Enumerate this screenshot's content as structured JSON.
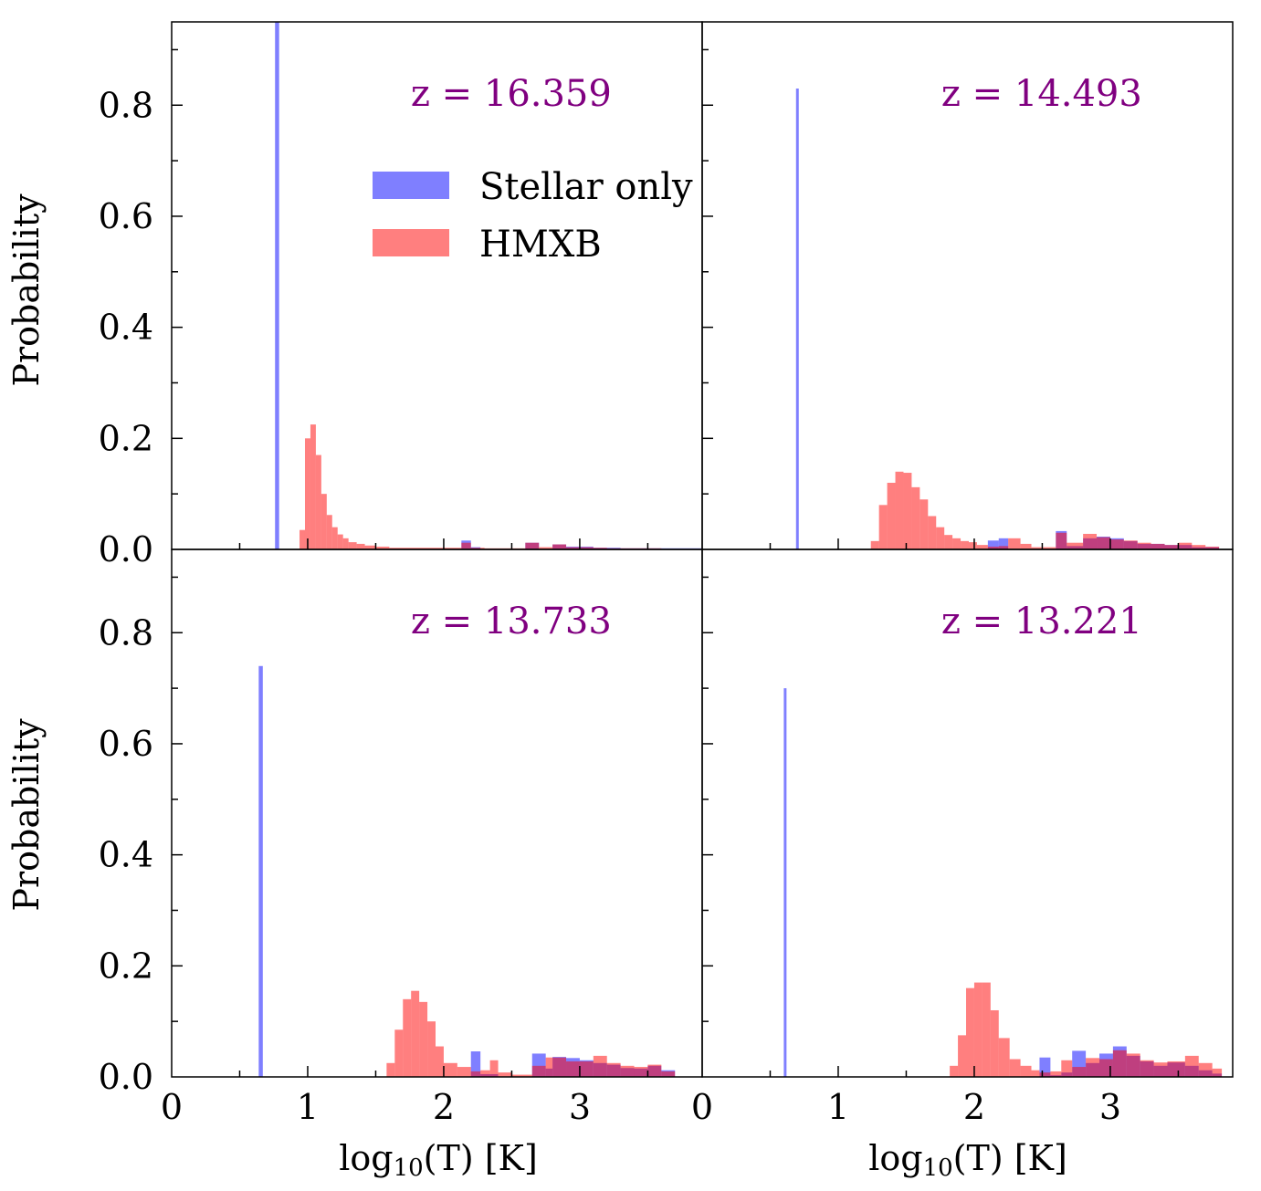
{
  "chart_data": {
    "type": "bar",
    "layout": "2x2 grid, shared axes",
    "ylabel": "Probability",
    "xlabel_main": "log",
    "xlabel_sub": "10",
    "xlabel_tail": "(T) [K]",
    "xlim": [
      0,
      3.9
    ],
    "ylim": [
      0,
      0.95
    ],
    "xticks": [
      "0",
      "1",
      "2",
      "3"
    ],
    "yticks": [
      "0.0",
      "0.2",
      "0.4",
      "0.6",
      "0.8"
    ],
    "legend": {
      "placement": "upper-center of top-left panel",
      "entries": [
        {
          "label": "Stellar only",
          "color": "#7f7fff"
        },
        {
          "label": "HMXB",
          "color": "#ff7f7f"
        }
      ]
    },
    "colors": {
      "stellar": "#7f7fff",
      "hmxb": "#ff7f7f",
      "overlap": "#990066",
      "annotation": "#800080"
    },
    "panels": [
      {
        "title": "z = 16.359",
        "stellar": [
          [
            0.76,
            0.79,
            0.95
          ],
          [
            2.13,
            2.2,
            0.016
          ],
          [
            2.2,
            2.27,
            0.004
          ],
          [
            2.6,
            2.7,
            0.012
          ],
          [
            2.8,
            2.9,
            0.009
          ],
          [
            2.9,
            3.1,
            0.005
          ],
          [
            3.1,
            3.3,
            0.003
          ],
          [
            3.3,
            3.9,
            0.002
          ]
        ],
        "hmxb": [
          [
            0.94,
            0.98,
            0.035
          ],
          [
            0.98,
            1.02,
            0.2
          ],
          [
            1.02,
            1.06,
            0.225
          ],
          [
            1.06,
            1.1,
            0.17
          ],
          [
            1.1,
            1.14,
            0.1
          ],
          [
            1.14,
            1.18,
            0.062
          ],
          [
            1.18,
            1.22,
            0.04
          ],
          [
            1.22,
            1.26,
            0.027
          ],
          [
            1.26,
            1.3,
            0.02
          ],
          [
            1.3,
            1.36,
            0.013
          ],
          [
            1.36,
            1.42,
            0.01
          ],
          [
            1.42,
            1.5,
            0.007
          ],
          [
            1.5,
            1.6,
            0.005
          ],
          [
            1.6,
            2.13,
            0.003
          ],
          [
            2.13,
            2.2,
            0.012
          ],
          [
            2.2,
            2.3,
            0.003
          ],
          [
            2.3,
            2.6,
            0.002
          ],
          [
            2.6,
            2.7,
            0.012
          ],
          [
            2.7,
            2.8,
            0.004
          ],
          [
            2.8,
            2.9,
            0.009
          ],
          [
            2.9,
            3.1,
            0.004
          ],
          [
            3.1,
            3.2,
            0.003
          ],
          [
            3.2,
            3.6,
            0.002
          ]
        ]
      },
      {
        "title": "z = 14.493",
        "stellar": [
          [
            0.69,
            0.71,
            0.83
          ],
          [
            2.1,
            2.18,
            0.016
          ],
          [
            2.18,
            2.25,
            0.02
          ],
          [
            2.6,
            2.68,
            0.033
          ],
          [
            2.68,
            2.8,
            0.006
          ],
          [
            2.8,
            2.9,
            0.02
          ],
          [
            2.9,
            3.0,
            0.023
          ],
          [
            3.0,
            3.1,
            0.02
          ],
          [
            3.1,
            3.2,
            0.015
          ],
          [
            3.2,
            3.4,
            0.01
          ],
          [
            3.4,
            3.6,
            0.008
          ],
          [
            3.6,
            3.8,
            0.004
          ]
        ],
        "hmxb": [
          [
            1.24,
            1.3,
            0.015
          ],
          [
            1.3,
            1.36,
            0.08
          ],
          [
            1.36,
            1.42,
            0.12
          ],
          [
            1.42,
            1.48,
            0.14
          ],
          [
            1.48,
            1.54,
            0.138
          ],
          [
            1.54,
            1.6,
            0.112
          ],
          [
            1.6,
            1.66,
            0.09
          ],
          [
            1.66,
            1.72,
            0.06
          ],
          [
            1.72,
            1.78,
            0.04
          ],
          [
            1.78,
            1.84,
            0.026
          ],
          [
            1.84,
            1.9,
            0.02
          ],
          [
            1.9,
            1.96,
            0.015
          ],
          [
            1.96,
            2.02,
            0.013
          ],
          [
            2.02,
            2.1,
            0.008
          ],
          [
            2.1,
            2.18,
            0.005
          ],
          [
            2.18,
            2.25,
            0.006
          ],
          [
            2.25,
            2.34,
            0.02
          ],
          [
            2.34,
            2.42,
            0.01
          ],
          [
            2.42,
            2.6,
            0.004
          ],
          [
            2.6,
            2.68,
            0.03
          ],
          [
            2.68,
            2.8,
            0.012
          ],
          [
            2.8,
            2.9,
            0.028
          ],
          [
            2.9,
            3.0,
            0.022
          ],
          [
            3.0,
            3.1,
            0.018
          ],
          [
            3.1,
            3.2,
            0.016
          ],
          [
            3.2,
            3.3,
            0.012
          ],
          [
            3.3,
            3.4,
            0.01
          ],
          [
            3.4,
            3.5,
            0.008
          ],
          [
            3.5,
            3.6,
            0.012
          ],
          [
            3.6,
            3.7,
            0.008
          ],
          [
            3.7,
            3.8,
            0.005
          ]
        ]
      },
      {
        "title": "z = 13.733",
        "stellar": [
          [
            0.64,
            0.67,
            0.74
          ],
          [
            2.2,
            2.27,
            0.046
          ],
          [
            2.27,
            2.4,
            0.005
          ],
          [
            2.65,
            2.75,
            0.042
          ],
          [
            2.75,
            2.8,
            0.015
          ],
          [
            2.8,
            2.9,
            0.036
          ],
          [
            2.9,
            3.0,
            0.034
          ],
          [
            3.0,
            3.1,
            0.03
          ],
          [
            3.1,
            3.2,
            0.025
          ],
          [
            3.2,
            3.3,
            0.022
          ],
          [
            3.3,
            3.4,
            0.016
          ],
          [
            3.4,
            3.5,
            0.015
          ],
          [
            3.5,
            3.6,
            0.02
          ],
          [
            3.6,
            3.7,
            0.012
          ]
        ],
        "hmxb": [
          [
            1.58,
            1.64,
            0.025
          ],
          [
            1.64,
            1.7,
            0.085
          ],
          [
            1.7,
            1.76,
            0.14
          ],
          [
            1.76,
            1.82,
            0.155
          ],
          [
            1.82,
            1.88,
            0.135
          ],
          [
            1.88,
            1.94,
            0.1
          ],
          [
            1.94,
            2.0,
            0.055
          ],
          [
            2.0,
            2.1,
            0.025
          ],
          [
            2.1,
            2.2,
            0.018
          ],
          [
            2.2,
            2.27,
            0.01
          ],
          [
            2.27,
            2.34,
            0.012
          ],
          [
            2.34,
            2.4,
            0.03
          ],
          [
            2.4,
            2.5,
            0.008
          ],
          [
            2.5,
            2.65,
            0.004
          ],
          [
            2.65,
            2.75,
            0.02
          ],
          [
            2.75,
            2.8,
            0.035
          ],
          [
            2.8,
            2.9,
            0.035
          ],
          [
            2.9,
            3.0,
            0.028
          ],
          [
            3.0,
            3.1,
            0.028
          ],
          [
            3.1,
            3.2,
            0.038
          ],
          [
            3.2,
            3.3,
            0.025
          ],
          [
            3.3,
            3.4,
            0.02
          ],
          [
            3.4,
            3.5,
            0.018
          ],
          [
            3.5,
            3.6,
            0.022
          ],
          [
            3.6,
            3.7,
            0.01
          ]
        ]
      },
      {
        "title": "z = 13.221",
        "stellar": [
          [
            0.6,
            0.62,
            0.7
          ],
          [
            2.48,
            2.56,
            0.035
          ],
          [
            2.56,
            2.64,
            0.003
          ],
          [
            2.64,
            2.72,
            0.008
          ],
          [
            2.72,
            2.82,
            0.047
          ],
          [
            2.82,
            2.92,
            0.025
          ],
          [
            2.92,
            3.02,
            0.042
          ],
          [
            3.02,
            3.12,
            0.055
          ],
          [
            3.12,
            3.22,
            0.038
          ],
          [
            3.22,
            3.32,
            0.028
          ],
          [
            3.32,
            3.42,
            0.02
          ],
          [
            3.42,
            3.55,
            0.026
          ],
          [
            3.55,
            3.65,
            0.02
          ],
          [
            3.65,
            3.75,
            0.012
          ],
          [
            3.75,
            3.82,
            0.006
          ]
        ],
        "hmxb": [
          [
            1.82,
            1.88,
            0.02
          ],
          [
            1.88,
            1.94,
            0.075
          ],
          [
            1.94,
            2.0,
            0.16
          ],
          [
            2.0,
            2.06,
            0.17
          ],
          [
            2.06,
            2.12,
            0.17
          ],
          [
            2.12,
            2.18,
            0.12
          ],
          [
            2.18,
            2.26,
            0.07
          ],
          [
            2.26,
            2.34,
            0.032
          ],
          [
            2.34,
            2.42,
            0.02
          ],
          [
            2.42,
            2.48,
            0.012
          ],
          [
            2.48,
            2.56,
            0.008
          ],
          [
            2.56,
            2.64,
            0.01
          ],
          [
            2.64,
            2.72,
            0.03
          ],
          [
            2.72,
            2.82,
            0.018
          ],
          [
            2.82,
            2.92,
            0.034
          ],
          [
            2.92,
            3.02,
            0.032
          ],
          [
            3.02,
            3.12,
            0.048
          ],
          [
            3.12,
            3.22,
            0.042
          ],
          [
            3.22,
            3.32,
            0.03
          ],
          [
            3.32,
            3.42,
            0.026
          ],
          [
            3.42,
            3.55,
            0.028
          ],
          [
            3.55,
            3.65,
            0.038
          ],
          [
            3.65,
            3.75,
            0.025
          ],
          [
            3.75,
            3.82,
            0.015
          ]
        ]
      }
    ]
  }
}
